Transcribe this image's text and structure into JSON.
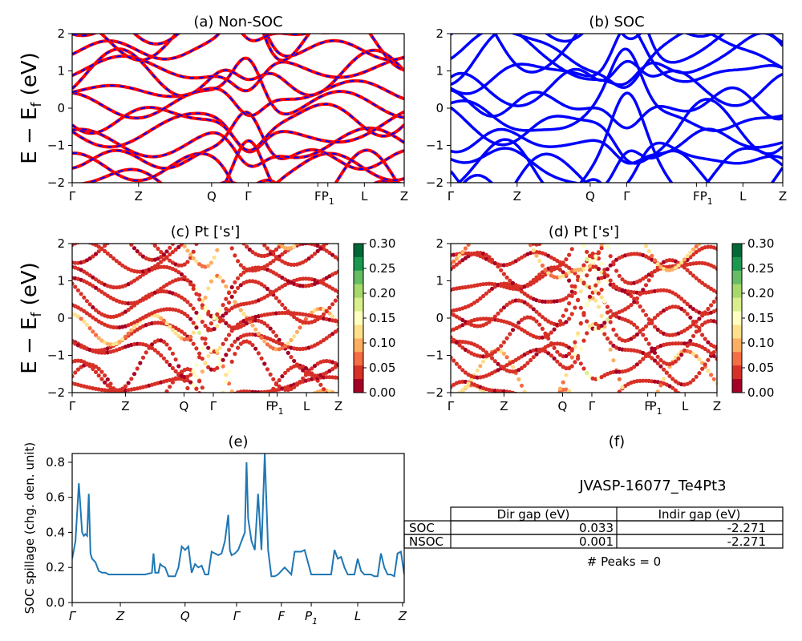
{
  "figure": {
    "ylabel": "E − E_f (eV)",
    "ylabel_main": "E − E",
    "ylabel_sub": "f",
    "ylabel_unit": " (eV)"
  },
  "panels": {
    "a": {
      "title": "(a) Non-SOC"
    },
    "b": {
      "title": "(b) SOC"
    },
    "c": {
      "title": "(c)  Pt ['s']"
    },
    "d": {
      "title": "(d) Pt ['s']"
    },
    "e": {
      "title": "(e)",
      "ylabel": "SOC spillage (chg. den. unit)"
    },
    "f": {
      "title": "(f)"
    }
  },
  "kpath": {
    "labels": [
      "Γ",
      "Z",
      "Q",
      "Γ",
      "F",
      "P",
      "L",
      "Z"
    ],
    "p1_sub": "1",
    "positions": [
      0,
      0.2,
      0.42,
      0.53,
      0.74,
      0.77,
      0.88,
      1.0
    ]
  },
  "spillage_kpath": {
    "labels": [
      "Γ",
      "Z",
      "Q",
      "Γ",
      "F",
      "P",
      "L",
      "Z"
    ],
    "positions": [
      0,
      0.145,
      0.34,
      0.495,
      0.63,
      0.72,
      0.86,
      0.995
    ]
  },
  "colorbar": {
    "ticks": [
      "0.30",
      "0.25",
      "0.20",
      "0.15",
      "0.10",
      "0.05",
      "0.00"
    ],
    "colors": [
      "#006837",
      "#1a9850",
      "#66bd63",
      "#a6d96a",
      "#d9ef8b",
      "#ffffbf",
      "#fee08b",
      "#fdae61",
      "#f46d43",
      "#d73027",
      "#a50026"
    ]
  },
  "colors": {
    "nonsoc_red": "#ff0000",
    "nonsoc_blue": "#0000ff",
    "soc_blue": "#0000ff",
    "spillage": "#1f77b4"
  },
  "table": {
    "system": "JVASP-16077_Te4Pt3",
    "headers": [
      "Dir gap (eV)",
      "Indir gap (eV)"
    ],
    "rows": [
      {
        "label": "SOC",
        "dir": "0.033",
        "indir": "-2.271"
      },
      {
        "label": "NSOC",
        "dir": "0.001",
        "indir": "-2.271"
      }
    ],
    "footer": "# Peaks = 0"
  },
  "chart_data": [
    {
      "type": "line",
      "panel": "a",
      "title": "(a) Non-SOC",
      "ylim": [
        -2,
        2
      ],
      "yticks": [
        -2,
        -1,
        0,
        1,
        2
      ]
    },
    {
      "type": "line",
      "panel": "b",
      "title": "(b) SOC",
      "ylim": [
        -2,
        2
      ],
      "yticks": [
        -2,
        -1,
        0,
        1,
        2
      ]
    },
    {
      "type": "scatter",
      "panel": "c",
      "title": "(c)  Pt ['s']",
      "ylim": [
        -2,
        2
      ],
      "yticks": [
        -2,
        -1,
        0,
        1,
        2
      ],
      "clim": [
        0,
        0.3
      ]
    },
    {
      "type": "scatter",
      "panel": "d",
      "title": "(d) Pt ['s']",
      "ylim": [
        -2,
        2
      ],
      "yticks": [
        -2,
        -1,
        0,
        1,
        2
      ],
      "clim": [
        0,
        0.3
      ]
    },
    {
      "type": "line",
      "panel": "e",
      "title": "(e)",
      "ylabel": "SOC spillage (chg. den. unit)",
      "ylim": [
        0,
        0.85
      ],
      "yticks": [
        "0.0",
        "0.2",
        "0.4",
        "0.6",
        "0.8"
      ],
      "x": [
        0.0,
        0.01,
        0.02,
        0.03,
        0.035,
        0.04,
        0.045,
        0.05,
        0.055,
        0.06,
        0.07,
        0.08,
        0.09,
        0.1,
        0.11,
        0.12,
        0.13,
        0.14,
        0.16,
        0.18,
        0.2,
        0.22,
        0.24,
        0.245,
        0.25,
        0.26,
        0.265,
        0.27,
        0.28,
        0.29,
        0.3,
        0.31,
        0.32,
        0.33,
        0.34,
        0.35,
        0.36,
        0.37,
        0.38,
        0.39,
        0.4,
        0.41,
        0.42,
        0.43,
        0.44,
        0.45,
        0.46,
        0.47,
        0.475,
        0.48,
        0.49,
        0.5,
        0.51,
        0.52,
        0.525,
        0.53,
        0.54,
        0.55,
        0.56,
        0.57,
        0.58,
        0.59,
        0.6,
        0.61,
        0.62,
        0.63,
        0.64,
        0.65,
        0.66,
        0.67,
        0.68,
        0.69,
        0.7,
        0.72,
        0.74,
        0.76,
        0.77,
        0.78,
        0.79,
        0.8,
        0.81,
        0.82,
        0.83,
        0.84,
        0.85,
        0.86,
        0.87,
        0.88,
        0.89,
        0.9,
        0.91,
        0.92,
        0.93,
        0.94,
        0.95,
        0.96,
        0.97,
        0.98,
        0.99,
        1.0
      ],
      "y": [
        0.25,
        0.35,
        0.68,
        0.4,
        0.38,
        0.39,
        0.38,
        0.62,
        0.28,
        0.25,
        0.23,
        0.18,
        0.17,
        0.17,
        0.16,
        0.16,
        0.16,
        0.16,
        0.16,
        0.16,
        0.16,
        0.16,
        0.17,
        0.28,
        0.17,
        0.17,
        0.22,
        0.21,
        0.2,
        0.15,
        0.15,
        0.15,
        0.2,
        0.32,
        0.3,
        0.32,
        0.17,
        0.22,
        0.2,
        0.21,
        0.16,
        0.16,
        0.29,
        0.28,
        0.27,
        0.28,
        0.35,
        0.5,
        0.3,
        0.27,
        0.28,
        0.3,
        0.35,
        0.4,
        0.8,
        0.48,
        0.35,
        0.3,
        0.62,
        0.3,
        0.85,
        0.3,
        0.15,
        0.15,
        0.16,
        0.18,
        0.2,
        0.18,
        0.16,
        0.29,
        0.29,
        0.29,
        0.3,
        0.16,
        0.16,
        0.16,
        0.16,
        0.16,
        0.3,
        0.25,
        0.26,
        0.2,
        0.16,
        0.16,
        0.16,
        0.25,
        0.18,
        0.16,
        0.16,
        0.16,
        0.15,
        0.15,
        0.28,
        0.2,
        0.16,
        0.16,
        0.15,
        0.28,
        0.29,
        0.16
      ]
    }
  ]
}
